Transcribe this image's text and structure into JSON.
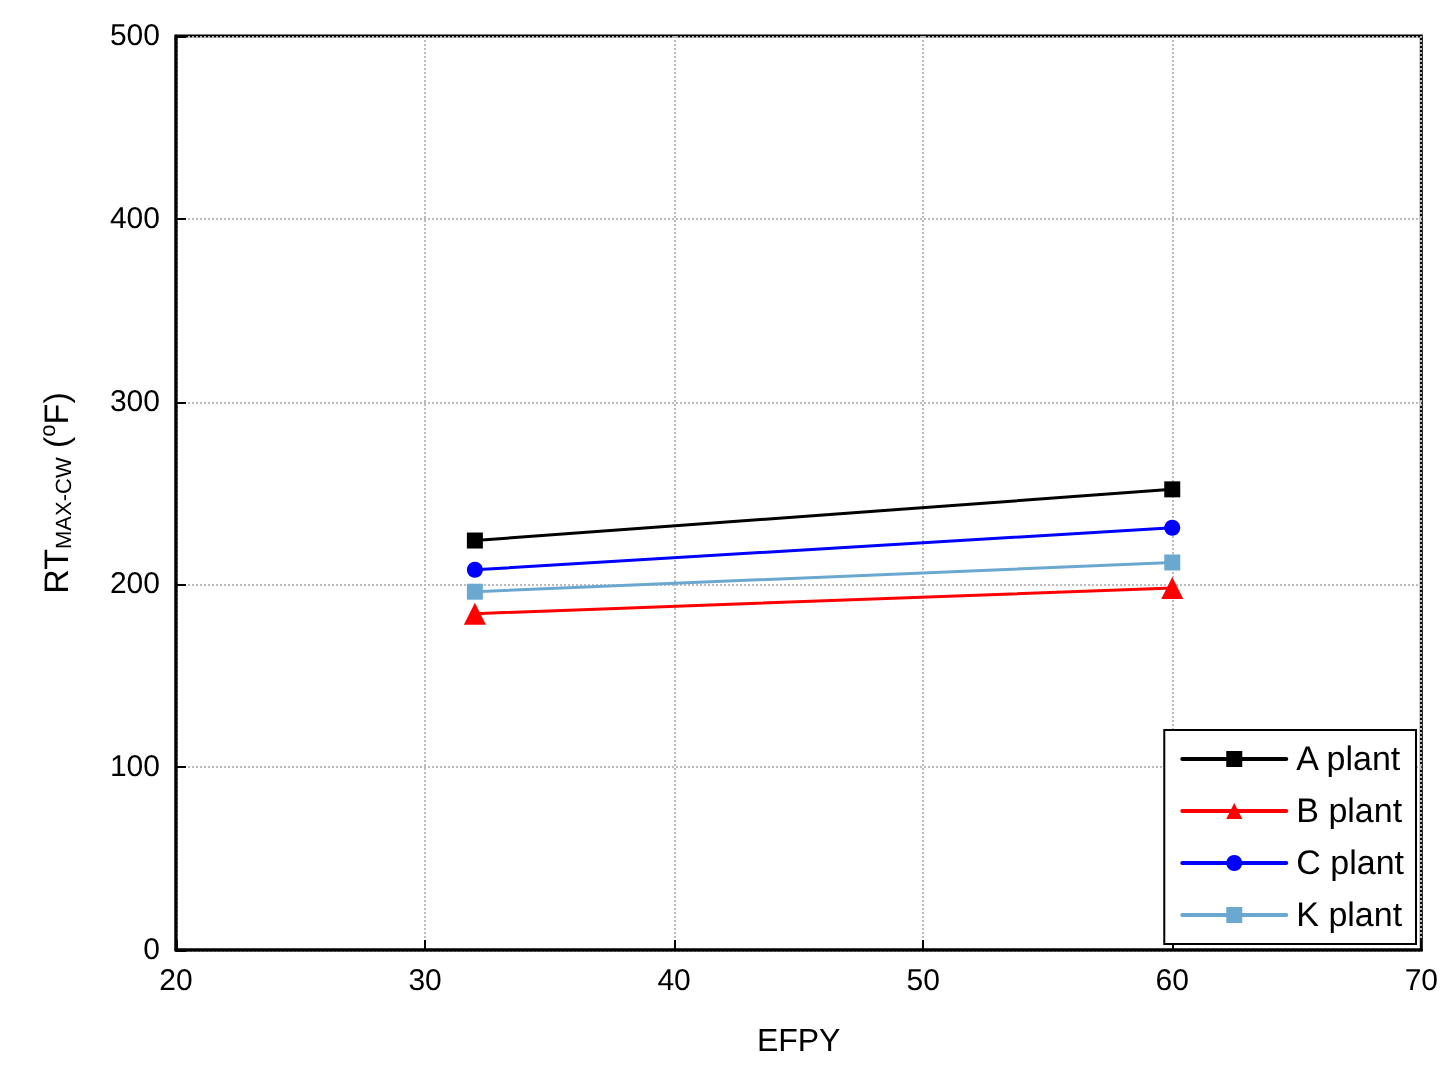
{
  "chart_data": {
    "type": "line",
    "xlabel": "EFPY",
    "ylabel": "RT$_{MAX-CW}$ ($^{o}$F)",
    "x": [
      32,
      60
    ],
    "series": [
      {
        "name": "A plant",
        "color": "#000000",
        "marker": "square",
        "values": [
          224,
          252
        ]
      },
      {
        "name": "B plant",
        "color": "#ff0000",
        "marker": "triangle",
        "values": [
          184,
          198
        ]
      },
      {
        "name": "C plant",
        "color": "#0000ff",
        "marker": "circle",
        "values": [
          208,
          231
        ]
      },
      {
        "name": "K plant",
        "color": "#6aa8d0",
        "marker": "square",
        "values": [
          196,
          212
        ]
      }
    ],
    "xlim": [
      20,
      70
    ],
    "xticks": [
      20,
      30,
      40,
      50,
      60,
      70
    ],
    "ylim": [
      0,
      500
    ],
    "yticks": [
      0,
      100,
      200,
      300,
      400,
      500
    ],
    "grid": true,
    "legend": "bottom right",
    "line_style": "solid"
  }
}
